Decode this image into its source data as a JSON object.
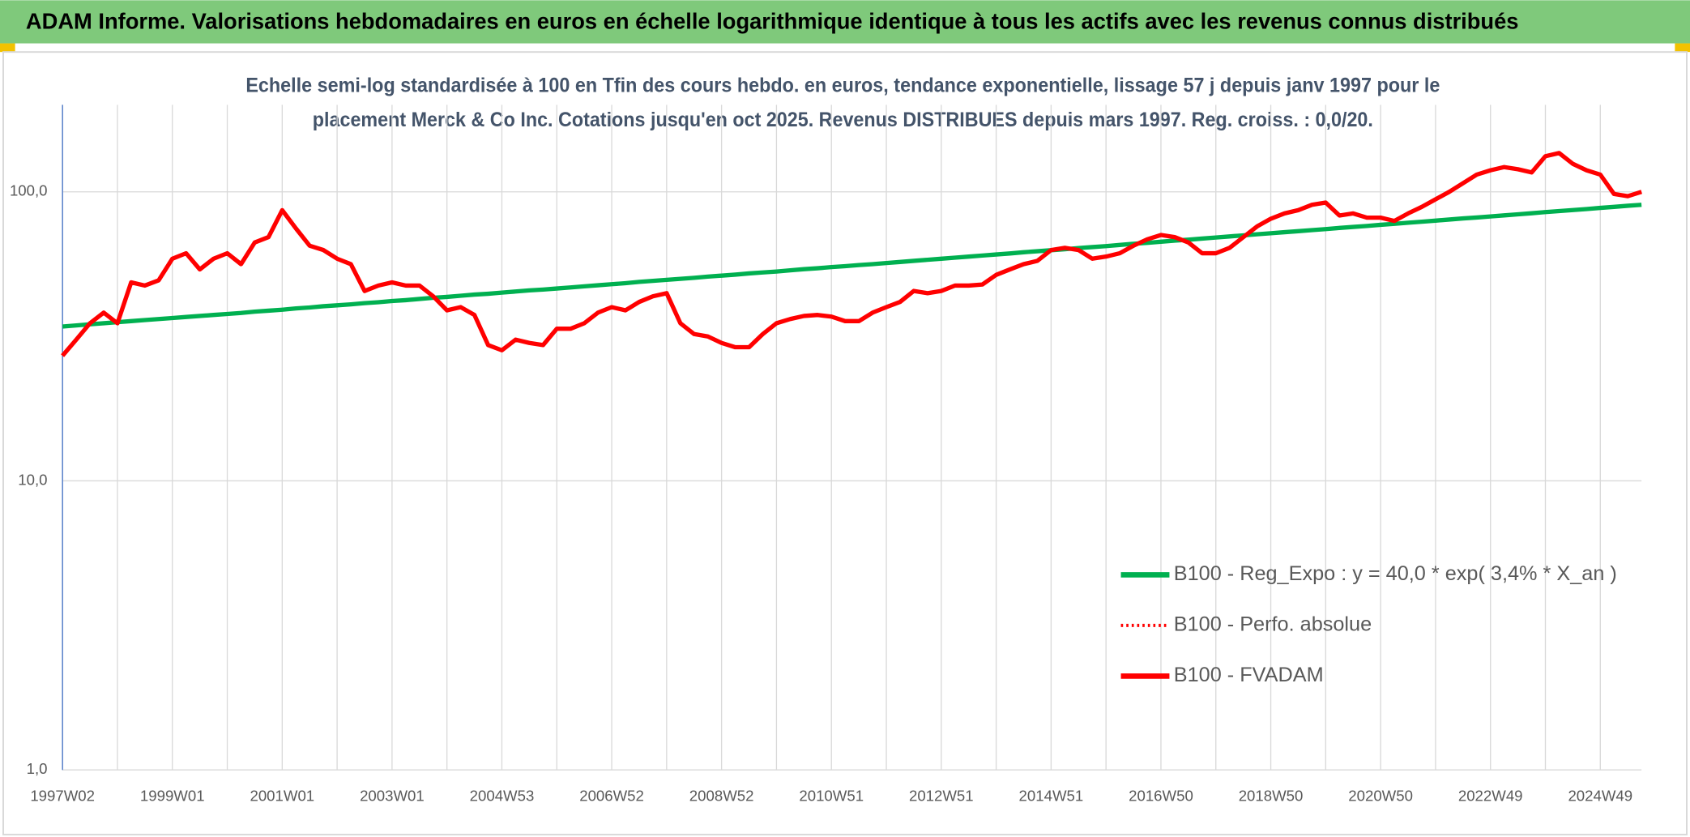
{
  "header": {
    "title": "ADAM Informe. Valorisations hebdomadaires en euros en échelle logarithmique identique à tous les actifs avec les revenus connus distribués"
  },
  "chart_data": {
    "type": "line",
    "title": [
      "Echelle semi-log standardisée à 100 en Tfin des cours hebdo. en euros, tendance exponentielle, lissage 57 j depuis janv 1997 pour le",
      "placement Merck & Co Inc. Cotations jusqu'en oct 2025. Revenus DISTRIBUES depuis mars 1997. Reg. croiss. : 0,0/20."
    ],
    "log_scale": true,
    "grid": true,
    "legend": "right",
    "ylim": [
      1,
      200
    ],
    "yticks": [
      {
        "value": 1,
        "label": "1,0"
      },
      {
        "value": 10,
        "label": "10,0"
      },
      {
        "value": 100,
        "label": "100,0"
      }
    ],
    "categories": [
      "1997W02",
      null,
      null,
      null,
      null,
      null,
      null,
      null,
      "1999W01",
      null,
      null,
      null,
      null,
      null,
      null,
      null,
      "2001W01",
      null,
      null,
      null,
      null,
      null,
      null,
      null,
      "2003W01",
      null,
      null,
      null,
      null,
      null,
      null,
      null,
      "2004W53",
      null,
      null,
      null,
      null,
      null,
      null,
      null,
      "2006W52",
      null,
      null,
      null,
      null,
      null,
      null,
      null,
      "2008W52",
      null,
      null,
      null,
      null,
      null,
      null,
      null,
      "2010W51",
      null,
      null,
      null,
      null,
      null,
      null,
      null,
      "2012W51",
      null,
      null,
      null,
      null,
      null,
      null,
      null,
      "2014W51",
      null,
      null,
      null,
      null,
      null,
      null,
      null,
      "2016W50",
      null,
      null,
      null,
      null,
      null,
      null,
      null,
      "2018W50",
      null,
      null,
      null,
      null,
      null,
      null,
      null,
      "2020W50",
      null,
      null,
      null,
      null,
      null,
      null,
      null,
      "2022W49",
      null,
      null,
      null,
      null,
      null,
      null,
      null,
      "2024W49",
      null,
      null,
      null
    ],
    "series": [
      {
        "name": "B100 - Reg_Expo : y = 40,0 * exp( 3,4% *  X_an )",
        "color": "#00b050",
        "style": "solid",
        "values": [
          34.2,
          34.5,
          34.8,
          35.1,
          35.4,
          35.7,
          36.0,
          36.3,
          36.6,
          36.9,
          37.2,
          37.5,
          37.8,
          38.1,
          38.5,
          38.8,
          39.1,
          39.5,
          39.8,
          40.2,
          40.5,
          40.8,
          41.2,
          41.5,
          41.9,
          42.2,
          42.6,
          43.0,
          43.3,
          43.7,
          44.1,
          44.4,
          44.8,
          45.2,
          45.6,
          45.9,
          46.3,
          46.7,
          47.1,
          47.5,
          47.9,
          48.3,
          48.8,
          49.2,
          49.6,
          50.0,
          50.4,
          50.9,
          51.3,
          51.7,
          52.2,
          52.6,
          53.0,
          53.5,
          54.0,
          54.4,
          54.9,
          55.3,
          55.8,
          56.2,
          56.7,
          57.2,
          57.7,
          58.2,
          58.7,
          59.2,
          59.7,
          60.2,
          60.7,
          61.2,
          61.8,
          62.3,
          62.8,
          63.3,
          63.9,
          64.4,
          64.9,
          65.5,
          66.1,
          66.6,
          67.2,
          67.8,
          68.3,
          68.9,
          69.5,
          70.1,
          70.7,
          71.3,
          71.9,
          72.5,
          73.1,
          73.7,
          74.3,
          75.0,
          75.6,
          76.2,
          76.9,
          77.5,
          78.2,
          78.8,
          79.5,
          80.2,
          80.9,
          81.5,
          82.2,
          82.9,
          83.6,
          84.3,
          85.1,
          85.8,
          86.5,
          87.2,
          88.0,
          88.7,
          89.5,
          90.2
        ]
      },
      {
        "name": "B100 - Perfo. absolue",
        "color": "#ff0000",
        "style": "dotted",
        "values": [
          27.1,
          30.8,
          35.1,
          38.2,
          35.1,
          48.6,
          47.4,
          49.4,
          58.7,
          61.3,
          53.9,
          58.7,
          61.3,
          56.2,
          66.8,
          69.7,
          86.4,
          74.7,
          65.1,
          62.9,
          58.7,
          56.2,
          45.4,
          47.4,
          48.6,
          47.4,
          47.4,
          43.5,
          38.9,
          39.9,
          37.5,
          29.5,
          28.3,
          30.8,
          30.0,
          29.5,
          33.6,
          33.6,
          35.1,
          38.2,
          39.9,
          38.9,
          41.6,
          43.5,
          44.6,
          35.1,
          32.2,
          31.6,
          30.0,
          29.0,
          29.0,
          32.2,
          35.1,
          36.3,
          37.2,
          37.5,
          37.0,
          35.7,
          35.7,
          38.2,
          39.9,
          41.6,
          45.4,
          44.6,
          45.4,
          47.4,
          47.4,
          47.8,
          51.6,
          53.9,
          56.2,
          57.7,
          62.9,
          64.0,
          62.9,
          58.7,
          59.7,
          61.3,
          65.1,
          68.5,
          70.9,
          69.7,
          66.8,
          61.3,
          61.3,
          64.0,
          69.7,
          75.9,
          80.7,
          84.2,
          86.4,
          90.2,
          91.8,
          82.8,
          84.2,
          81.4,
          81.4,
          79.3,
          84.2,
          88.7,
          94.2,
          100.0,
          107.1,
          114.7,
          118.7,
          121.8,
          119.7,
          116.7,
          132.8,
          136.2,
          125.0,
          118.7,
          114.7,
          98.3,
          96.6,
          100.0
        ]
      },
      {
        "name": "B100 - FVADAM",
        "color": "#ff0000",
        "style": "solid",
        "values": [
          27.1,
          30.8,
          35.1,
          38.2,
          35.1,
          48.6,
          47.4,
          49.4,
          58.7,
          61.3,
          53.9,
          58.7,
          61.3,
          56.2,
          66.8,
          69.7,
          86.4,
          74.7,
          65.1,
          62.9,
          58.7,
          56.2,
          45.4,
          47.4,
          48.6,
          47.4,
          47.4,
          43.5,
          38.9,
          39.9,
          37.5,
          29.5,
          28.3,
          30.8,
          30.0,
          29.5,
          33.6,
          33.6,
          35.1,
          38.2,
          39.9,
          38.9,
          41.6,
          43.5,
          44.6,
          35.1,
          32.2,
          31.6,
          30.0,
          29.0,
          29.0,
          32.2,
          35.1,
          36.3,
          37.2,
          37.5,
          37.0,
          35.7,
          35.7,
          38.2,
          39.9,
          41.6,
          45.4,
          44.6,
          45.4,
          47.4,
          47.4,
          47.8,
          51.6,
          53.9,
          56.2,
          57.7,
          62.9,
          64.0,
          62.9,
          58.7,
          59.7,
          61.3,
          65.1,
          68.5,
          70.9,
          69.7,
          66.8,
          61.3,
          61.3,
          64.0,
          69.7,
          75.9,
          80.7,
          84.2,
          86.4,
          90.2,
          91.8,
          82.8,
          84.2,
          81.4,
          81.4,
          79.3,
          84.2,
          88.7,
          94.2,
          100.0,
          107.1,
          114.7,
          118.7,
          121.8,
          119.7,
          116.7,
          132.8,
          136.2,
          125.0,
          118.7,
          114.7,
          98.3,
          96.6,
          100.0
        ]
      }
    ]
  }
}
